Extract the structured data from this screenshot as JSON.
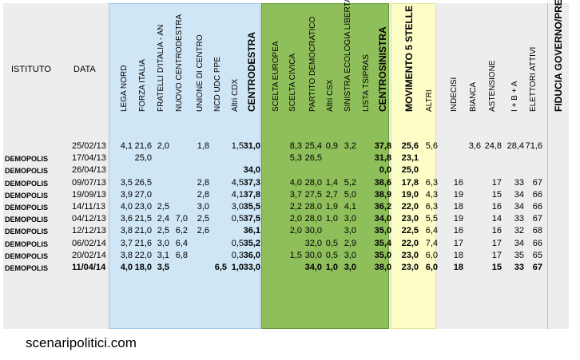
{
  "header": {
    "istituto": "ISTITUTO",
    "data": "DATA"
  },
  "columns": [
    "LEGA NORD",
    "FORZA ITALIA",
    "FRATELLI D'ITALIA - AN",
    "NUOVO CENTRODESTRA",
    "UNIONE DI CENTRO",
    "NCD UDC PPE",
    "Altri CDX",
    "CENTRODESTRA",
    "SCELTA EUROPEA",
    "SCELTA CIVICA",
    "PARTITO DEMOCRATICO",
    "Altri CSX",
    "SINISTRA ECOLOGIA LIBERTA'",
    "LISTA TSIPRAS",
    "CENTROSINISTRA",
    "MOVIMENTO 5 STELLE",
    "ALTRI",
    "INDECISI",
    "BIANCA",
    "ASTENSIONE",
    "I + B + A",
    "ELETTORI ATTIVI",
    "FIDUCIA GOVERNO/PREMIER"
  ],
  "rows": [
    {
      "istituto": "",
      "data": "25/02/13",
      "v": [
        "4,1",
        "21,6",
        "2,0",
        "",
        "1,8",
        "",
        "1,5",
        "31,0",
        "",
        "8,3",
        "25,4",
        "0,9",
        "3,2",
        "",
        "37,8",
        "25,6",
        "5,6",
        "",
        "3,6",
        "24,8",
        "28,4",
        "71,6",
        ""
      ]
    },
    {
      "istituto": "DEMOPOLIS",
      "data": "17/04/13",
      "v": [
        "",
        "25,0",
        "",
        "",
        "",
        "",
        "",
        "",
        "",
        "5,3",
        "26,5",
        "",
        "",
        "",
        "31,8",
        "23,1",
        "",
        "",
        "",
        "",
        "",
        "",
        ""
      ]
    },
    {
      "istituto": "DEMOPOLIS",
      "data": "26/04/13",
      "v": [
        "",
        "",
        "",
        "",
        "",
        "",
        "",
        "34,0",
        "",
        "",
        "",
        "",
        "",
        "",
        "0,0",
        "25,0",
        "",
        "",
        "",
        "",
        "",
        "",
        ""
      ]
    },
    {
      "istituto": "DEMOPOLIS",
      "data": "09/07/13",
      "v": [
        "3,5",
        "26,5",
        "",
        "",
        "2,8",
        "",
        "4,5",
        "37,3",
        "",
        "4,0",
        "28,0",
        "1,4",
        "5,2",
        "",
        "38,6",
        "17,8",
        "6,3",
        "16",
        "",
        "17",
        "33",
        "67",
        ""
      ]
    },
    {
      "istituto": "DEMOPOLIS",
      "data": "19/09/13",
      "v": [
        "3,9",
        "27,0",
        "",
        "",
        "2,8",
        "",
        "4,1",
        "37,8",
        "",
        "3,7",
        "27,5",
        "2,7",
        "5,0",
        "",
        "38,9",
        "19,0",
        "4,3",
        "19",
        "",
        "15",
        "34",
        "66",
        ""
      ]
    },
    {
      "istituto": "DEMOPOLIS",
      "data": "14/11/13",
      "v": [
        "4,0",
        "23,0",
        "2,5",
        "",
        "3,0",
        "",
        "3,0",
        "35,5",
        "",
        "2,2",
        "28,0",
        "1,9",
        "4,1",
        "",
        "36,2",
        "22,0",
        "6,3",
        "18",
        "",
        "16",
        "34",
        "66",
        ""
      ]
    },
    {
      "istituto": "DEMOPOLIS",
      "data": "04/12/13",
      "v": [
        "3,6",
        "21,5",
        "2,4",
        "7,0",
        "2,5",
        "",
        "0,5",
        "37,5",
        "",
        "2,0",
        "28,0",
        "1,0",
        "3,0",
        "",
        "34,0",
        "23,0",
        "5,5",
        "19",
        "",
        "14",
        "33",
        "67",
        ""
      ]
    },
    {
      "istituto": "DEMOPOLIS",
      "data": "12/12/13",
      "v": [
        "3,8",
        "21,0",
        "2,5",
        "6,2",
        "2,6",
        "",
        "",
        "36,1",
        "",
        "2,0",
        "30,0",
        "",
        "3,0",
        "",
        "35,0",
        "22,5",
        "6,4",
        "16",
        "",
        "16",
        "32",
        "68",
        ""
      ]
    },
    {
      "istituto": "DEMOPOLIS",
      "data": "06/02/14",
      "v": [
        "3,7",
        "21,6",
        "3,0",
        "6,4",
        "",
        "",
        "0,5",
        "35,2",
        "",
        "",
        "32,0",
        "0,5",
        "2,9",
        "",
        "35,4",
        "22,0",
        "7,4",
        "17",
        "",
        "17",
        "34",
        "66",
        ""
      ]
    },
    {
      "istituto": "DEMOPOLIS",
      "data": "20/02/14",
      "v": [
        "3,8",
        "22,0",
        "3,1",
        "6,8",
        "",
        "",
        "0,3",
        "36,0",
        "",
        "1,5",
        "30,0",
        "0,5",
        "3,0",
        "",
        "35,0",
        "23,0",
        "6,0",
        "18",
        "",
        "17",
        "35",
        "65",
        ""
      ]
    },
    {
      "istituto": "DEMOPOLIS",
      "data": "11/04/14",
      "v": [
        "4,0",
        "18,0",
        "3,5",
        "",
        "",
        "6,5",
        "1,0",
        "33,0",
        "",
        "",
        "34,0",
        "1,0",
        "3,0",
        "",
        "38,0",
        "23,0",
        "6,0",
        "18",
        "",
        "15",
        "33",
        "67",
        ""
      ]
    }
  ],
  "footer": "scenaripolitici.com"
}
